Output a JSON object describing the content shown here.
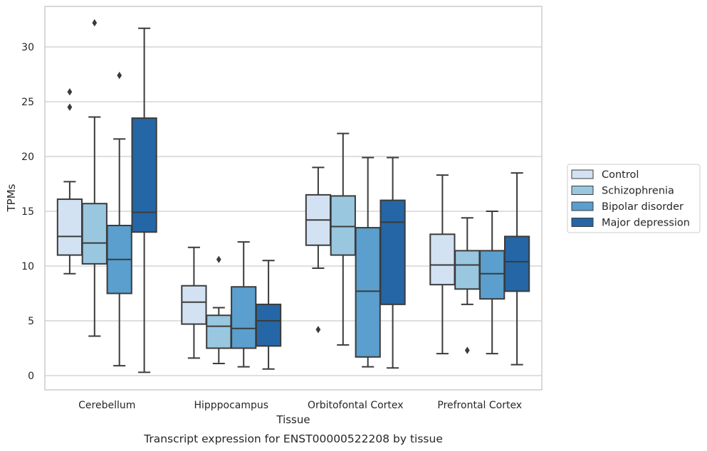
{
  "chart_data": {
    "type": "boxplot",
    "caption": "Transcript expression for ENST00000522208 by tissue",
    "xlabel": "Tissue",
    "ylabel": "TPMs",
    "ylim": [
      -1.3,
      33.7
    ],
    "yticks": [
      0,
      5,
      10,
      15,
      20,
      25,
      30
    ],
    "grid": true,
    "legend_position": "right",
    "categories": [
      "Cerebellum",
      "Hipppocampus",
      "Orbitofontal Cortex",
      "Prefrontal Cortex"
    ],
    "series": [
      {
        "name": "Control",
        "color": "#d2e2f2",
        "boxes": [
          {
            "whislo": 9.3,
            "q1": 11.0,
            "med": 12.7,
            "q3": 16.1,
            "whishi": 17.7,
            "fliers": [
              24.5,
              25.9
            ]
          },
          {
            "whislo": 1.6,
            "q1": 4.7,
            "med": 6.7,
            "q3": 8.2,
            "whishi": 11.7,
            "fliers": []
          },
          {
            "whislo": 9.8,
            "q1": 11.9,
            "med": 14.2,
            "q3": 16.5,
            "whishi": 19.0,
            "fliers": [
              4.2
            ]
          },
          {
            "whislo": 2.0,
            "q1": 8.3,
            "med": 10.1,
            "q3": 12.9,
            "whishi": 18.3,
            "fliers": []
          }
        ]
      },
      {
        "name": "Schizophrenia",
        "color": "#9ac7e0",
        "boxes": [
          {
            "whislo": 3.6,
            "q1": 10.2,
            "med": 12.1,
            "q3": 15.7,
            "whishi": 23.6,
            "fliers": [
              32.2
            ]
          },
          {
            "whislo": 1.1,
            "q1": 2.5,
            "med": 4.5,
            "q3": 5.5,
            "whishi": 6.2,
            "fliers": [
              10.6
            ]
          },
          {
            "whislo": 2.8,
            "q1": 11.0,
            "med": 13.6,
            "q3": 16.4,
            "whishi": 22.1,
            "fliers": []
          },
          {
            "whislo": 6.5,
            "q1": 7.9,
            "med": 10.1,
            "q3": 11.4,
            "whishi": 14.4,
            "fliers": [
              2.3
            ]
          }
        ]
      },
      {
        "name": "Bipolar disorder",
        "color": "#5a9fcd",
        "boxes": [
          {
            "whislo": 0.9,
            "q1": 7.5,
            "med": 10.6,
            "q3": 13.7,
            "whishi": 21.6,
            "fliers": [
              27.4
            ]
          },
          {
            "whislo": 0.8,
            "q1": 2.5,
            "med": 4.3,
            "q3": 8.1,
            "whishi": 12.2,
            "fliers": []
          },
          {
            "whislo": 0.8,
            "q1": 1.7,
            "med": 7.7,
            "q3": 13.5,
            "whishi": 19.9,
            "fliers": []
          },
          {
            "whislo": 2.0,
            "q1": 7.0,
            "med": 9.3,
            "q3": 11.4,
            "whishi": 15.0,
            "fliers": []
          }
        ]
      },
      {
        "name": "Major depression",
        "color": "#2566a6",
        "boxes": [
          {
            "whislo": 0.3,
            "q1": 13.1,
            "med": 14.9,
            "q3": 23.5,
            "whishi": 31.7,
            "fliers": []
          },
          {
            "whislo": 0.6,
            "q1": 2.7,
            "med": 5.0,
            "q3": 6.5,
            "whishi": 10.5,
            "fliers": []
          },
          {
            "whislo": 0.7,
            "q1": 6.5,
            "med": 14.0,
            "q3": 16.0,
            "whishi": 19.9,
            "fliers": []
          },
          {
            "whislo": 1.0,
            "q1": 7.7,
            "med": 10.4,
            "q3": 12.7,
            "whishi": 18.5,
            "fliers": []
          }
        ]
      }
    ]
  }
}
